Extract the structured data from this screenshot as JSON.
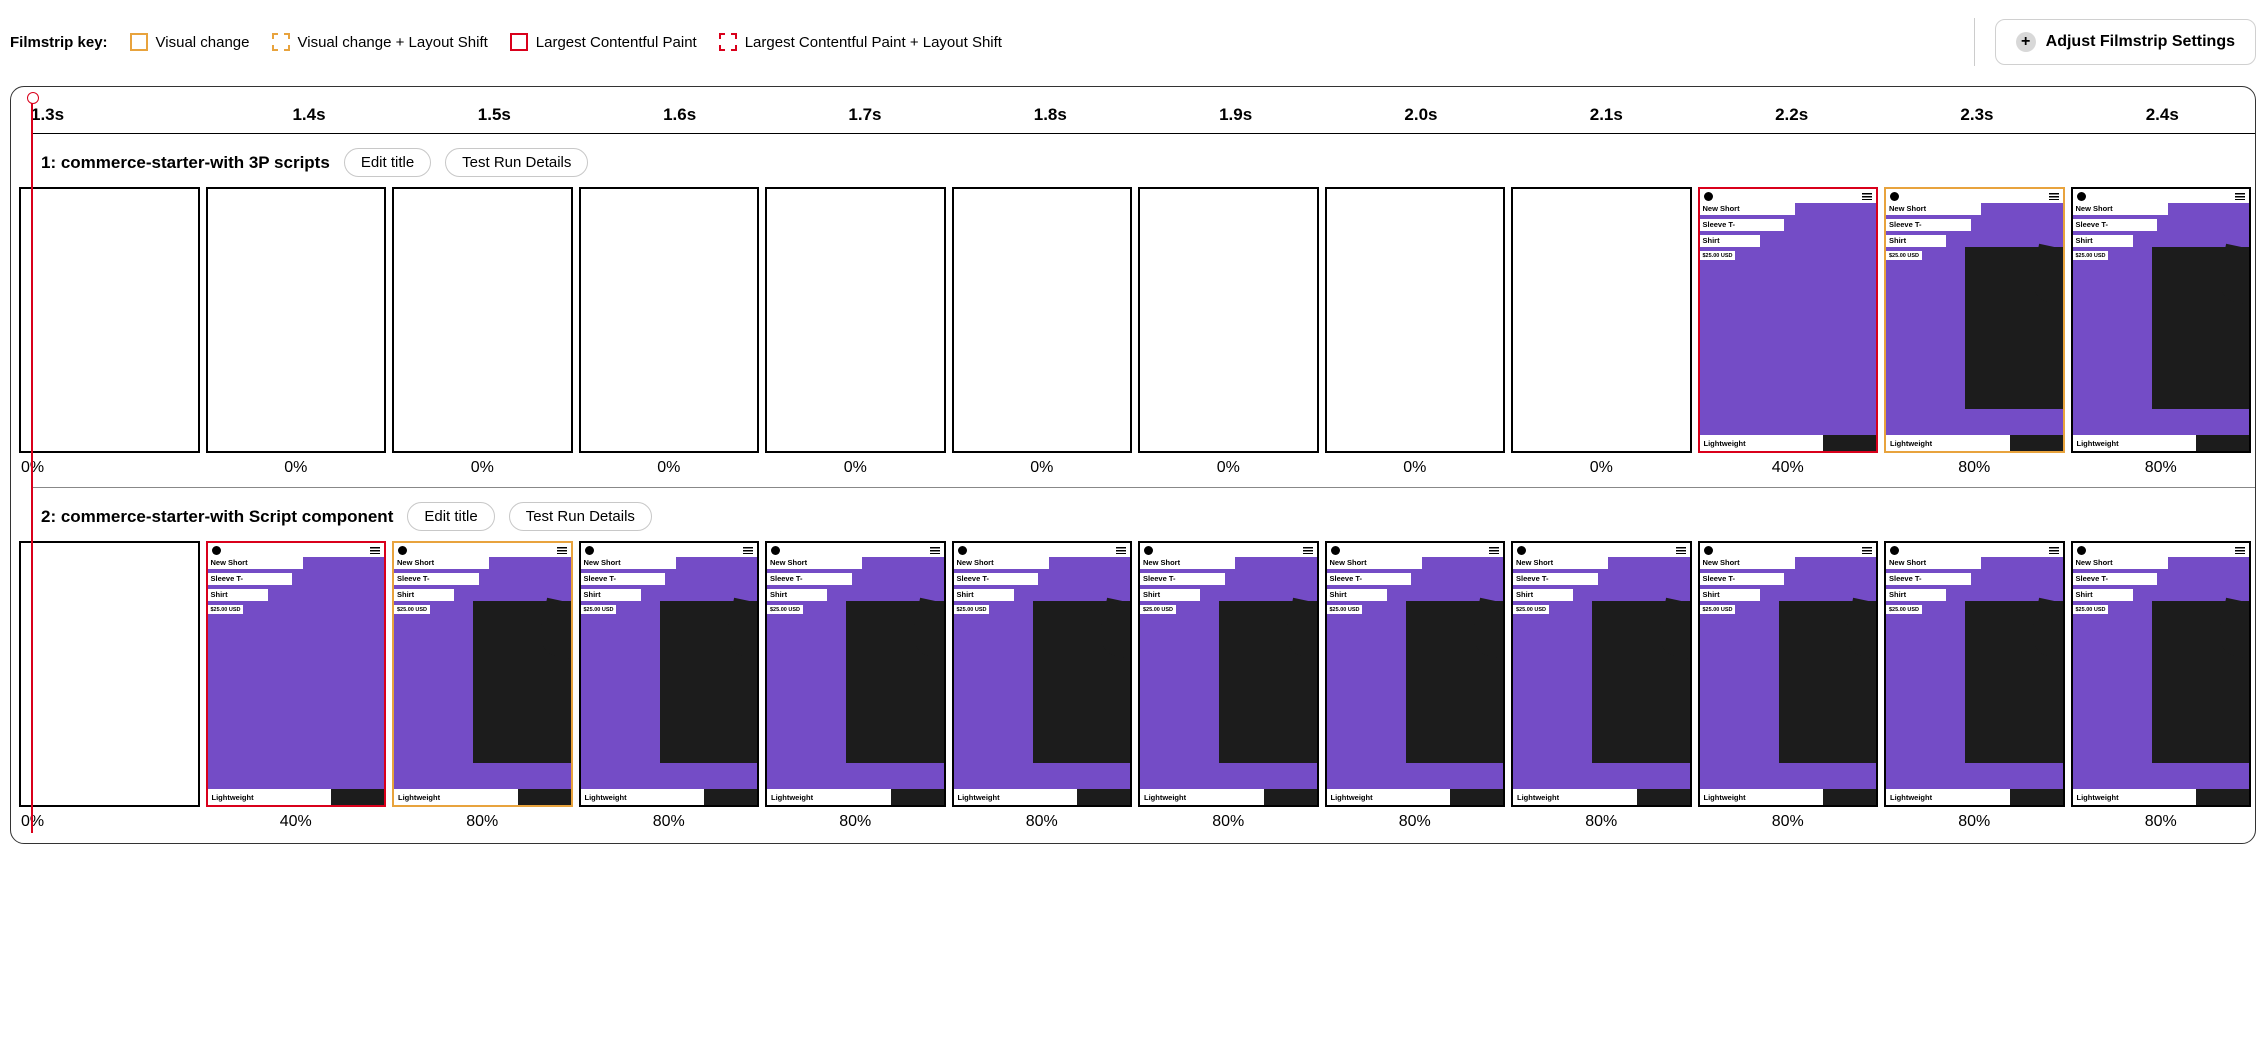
{
  "legend": {
    "label": "Filmstrip key:",
    "items": [
      {
        "swatch": "visual",
        "text": "Visual change"
      },
      {
        "swatch": "visual-shift",
        "text": "Visual change + Layout Shift"
      },
      {
        "swatch": "lcp",
        "text": "Largest Contentful Paint"
      },
      {
        "swatch": "lcp-shift",
        "text": "Largest Contentful Paint + Layout Shift"
      }
    ]
  },
  "adjust_button": "Adjust Filmstrip Settings",
  "colors": {
    "visual_change": "#e8a33d",
    "lcp": "#d9001b",
    "frame_default": "#000000",
    "thumb_bg": "#744cc6",
    "thumb_dark": "#1c1c1c"
  },
  "timeline": [
    "1.3s",
    "1.4s",
    "1.5s",
    "1.6s",
    "1.7s",
    "1.8s",
    "1.9s",
    "2.0s",
    "2.1s",
    "2.2s",
    "2.3s",
    "2.4s"
  ],
  "thumb_content": {
    "title_line1": "New Short",
    "title_line2": "Sleeve T-",
    "title_line3": "Shirt",
    "price": "$25.00 USD",
    "tag": "Lightweight"
  },
  "runs": [
    {
      "title": "1: commerce-starter-with 3P scripts",
      "edit_label": "Edit title",
      "details_label": "Test Run Details",
      "frames": [
        {
          "pct": "0%",
          "blank": true,
          "border": "default"
        },
        {
          "pct": "0%",
          "blank": true,
          "border": "default"
        },
        {
          "pct": "0%",
          "blank": true,
          "border": "default"
        },
        {
          "pct": "0%",
          "blank": true,
          "border": "default"
        },
        {
          "pct": "0%",
          "blank": true,
          "border": "default"
        },
        {
          "pct": "0%",
          "blank": true,
          "border": "default"
        },
        {
          "pct": "0%",
          "blank": true,
          "border": "default"
        },
        {
          "pct": "0%",
          "blank": true,
          "border": "default"
        },
        {
          "pct": "0%",
          "blank": true,
          "border": "default"
        },
        {
          "pct": "40%",
          "blank": false,
          "border": "lcp",
          "no_shirt": true
        },
        {
          "pct": "80%",
          "blank": false,
          "border": "visual"
        },
        {
          "pct": "80%",
          "blank": false,
          "border": "default"
        }
      ]
    },
    {
      "title": "2: commerce-starter-with Script component",
      "edit_label": "Edit title",
      "details_label": "Test Run Details",
      "frames": [
        {
          "pct": "0%",
          "blank": true,
          "border": "default"
        },
        {
          "pct": "40%",
          "blank": false,
          "border": "lcp",
          "no_shirt": true
        },
        {
          "pct": "80%",
          "blank": false,
          "border": "visual"
        },
        {
          "pct": "80%",
          "blank": false,
          "border": "default"
        },
        {
          "pct": "80%",
          "blank": false,
          "border": "default"
        },
        {
          "pct": "80%",
          "blank": false,
          "border": "default"
        },
        {
          "pct": "80%",
          "blank": false,
          "border": "default"
        },
        {
          "pct": "80%",
          "blank": false,
          "border": "default"
        },
        {
          "pct": "80%",
          "blank": false,
          "border": "default"
        },
        {
          "pct": "80%",
          "blank": false,
          "border": "default"
        },
        {
          "pct": "80%",
          "blank": false,
          "border": "default"
        },
        {
          "pct": "80%",
          "blank": false,
          "border": "default"
        }
      ]
    }
  ]
}
